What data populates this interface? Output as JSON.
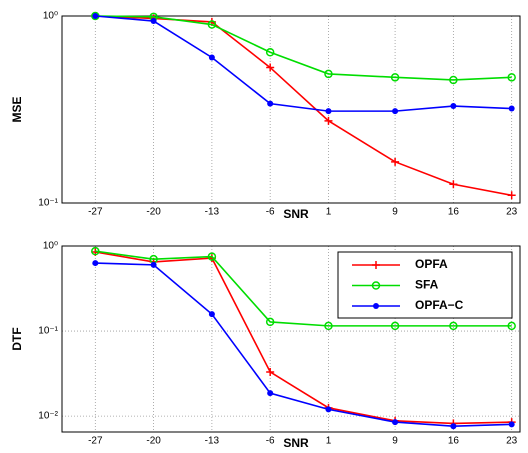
{
  "chart_data": [
    {
      "type": "line",
      "x_label": "SNR",
      "y_label": "MSE",
      "log_y": true,
      "grid": true,
      "legend": false,
      "x": [
        -27,
        -20,
        -13,
        -6,
        1,
        9,
        16,
        23
      ],
      "xlim": [
        -31,
        24
      ],
      "xticks": [
        -27,
        -20,
        -13,
        -6,
        1,
        9,
        16,
        23
      ],
      "ylim": [
        0.1,
        1
      ],
      "yticks": [
        {
          "value": 0.1,
          "label": "10⁻¹"
        },
        {
          "value": 1,
          "label": "10⁰"
        }
      ],
      "series": [
        {
          "color": "#ff0000",
          "marker": "plus",
          "values": [
            1.0,
            0.97,
            0.93,
            0.53,
            0.275,
            0.166,
            0.126,
            0.11
          ]
        },
        {
          "color": "#00dd00",
          "marker": "circle",
          "values": [
            1.0,
            0.99,
            0.9,
            0.64,
            0.49,
            0.47,
            0.455,
            0.47
          ]
        },
        {
          "color": "#0000ff",
          "marker": "dot",
          "values": [
            1.0,
            0.94,
            0.6,
            0.34,
            0.31,
            0.31,
            0.33,
            0.32
          ]
        }
      ]
    },
    {
      "type": "line",
      "x_label": "SNR",
      "y_label": "DTF",
      "log_y": true,
      "grid": true,
      "legend": "upper right",
      "x": [
        -27,
        -20,
        -13,
        -6,
        1,
        9,
        16,
        23
      ],
      "xlim": [
        -31,
        24
      ],
      "xticks": [
        -27,
        -20,
        -13,
        -6,
        1,
        9,
        16,
        23
      ],
      "ylim": [
        0.0065,
        1
      ],
      "yticks": [
        {
          "value": 0.01,
          "label": "10⁻²"
        },
        {
          "value": 0.1,
          "label": "10⁻¹"
        },
        {
          "value": 1,
          "label": "10⁰"
        }
      ],
      "series": [
        {
          "name": "OPFA",
          "color": "#ff0000",
          "marker": "plus",
          "values": [
            0.85,
            0.65,
            0.72,
            0.033,
            0.0125,
            0.0088,
            0.0082,
            0.0085
          ]
        },
        {
          "name": "SFA",
          "color": "#00dd00",
          "marker": "circle",
          "values": [
            0.87,
            0.7,
            0.75,
            0.128,
            0.115,
            0.115,
            0.115,
            0.115
          ]
        },
        {
          "name": "OPFA−C",
          "color": "#0000ff",
          "marker": "dot",
          "values": [
            0.63,
            0.6,
            0.158,
            0.0186,
            0.012,
            0.0085,
            0.0076,
            0.008
          ]
        }
      ]
    }
  ]
}
